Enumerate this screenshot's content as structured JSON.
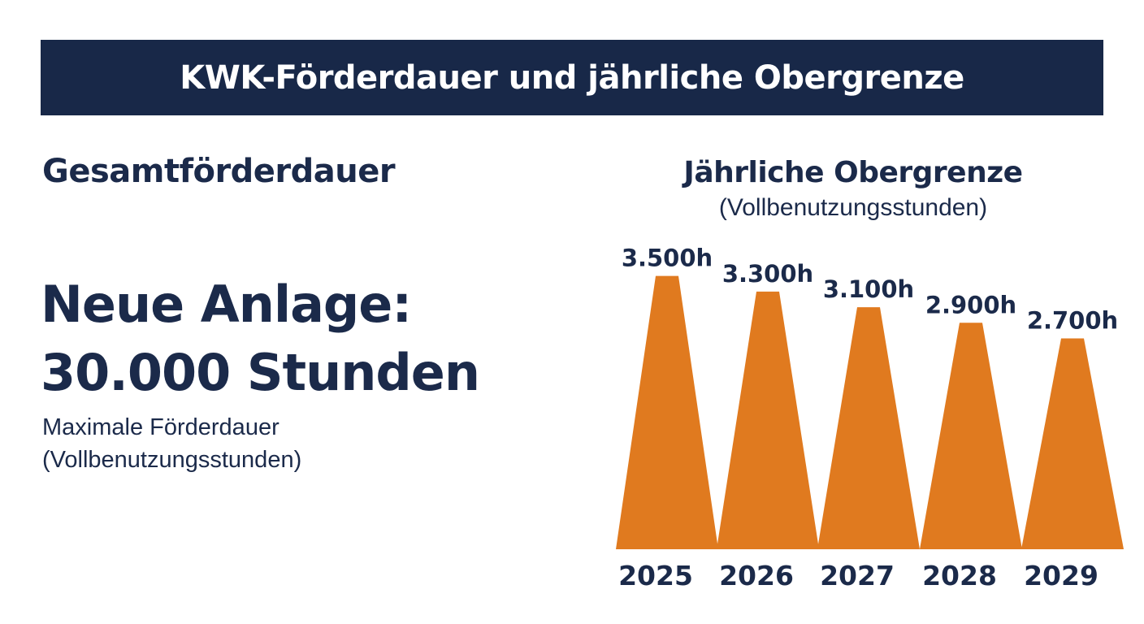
{
  "header": {
    "title": "KWK-Förderdauer und jährliche Obergrenze"
  },
  "left_panel": {
    "heading": "Gesamtförderdauer",
    "big_line_1": "Neue Anlage:",
    "big_line_2": "30.000 Stunden",
    "sub_line_1": "Maximale Förderdauer",
    "sub_line_2": "(Vollbenutzungsstunden)"
  },
  "chart_data": {
    "type": "bar",
    "title": "Jährliche Obergrenze",
    "subtitle": "(Vollbenutzungsstunden)",
    "categories": [
      "2025",
      "2026",
      "2027",
      "2028",
      "2029"
    ],
    "values": [
      3500,
      3300,
      3100,
      2900,
      2700
    ],
    "data_labels": [
      "3.500h",
      "3.300h",
      "3.100h",
      "2.900h",
      "2.700h"
    ],
    "unit": "h",
    "grid": false,
    "legend": "none",
    "bar_color": "#e07a1f"
  },
  "colors": {
    "banner": "#182848",
    "text": "#1b2a4a",
    "accent": "#e07a1f"
  }
}
